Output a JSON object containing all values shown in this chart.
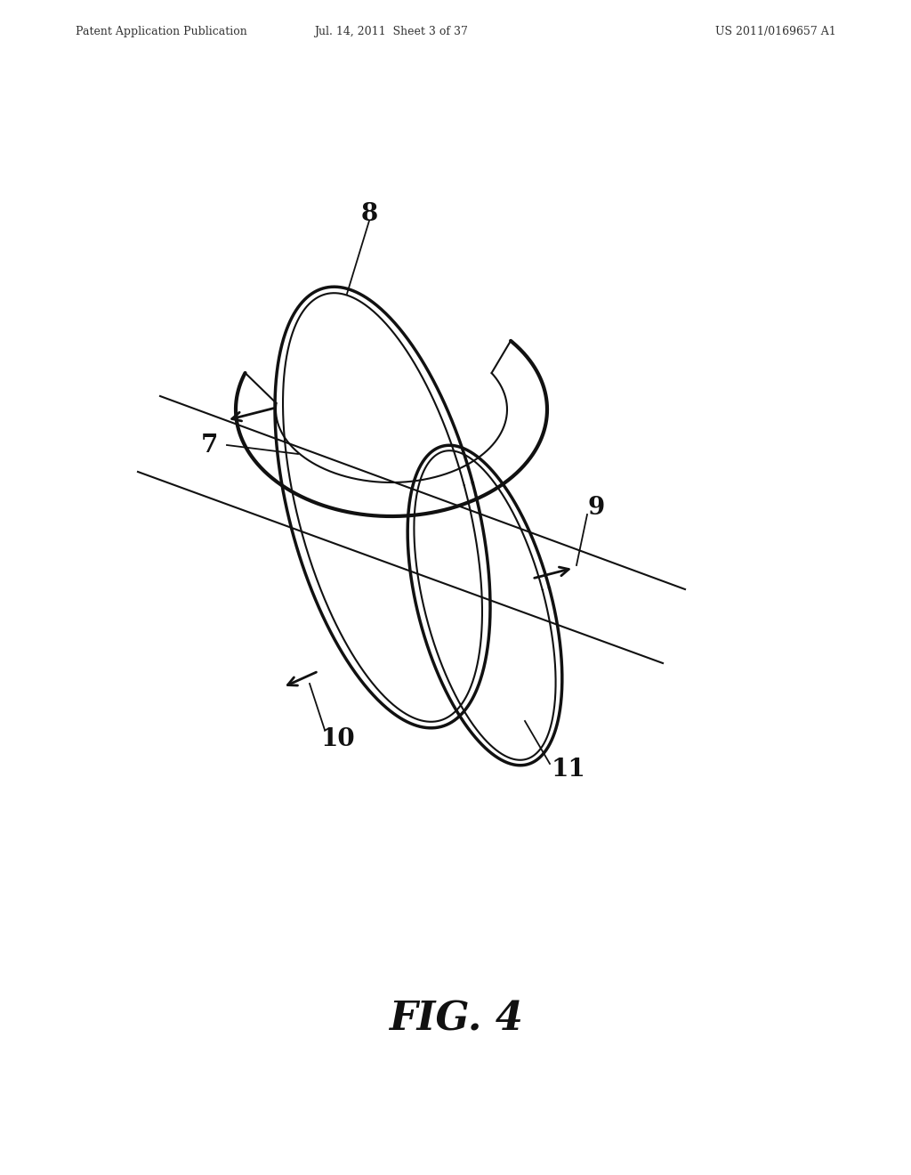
{
  "header_left": "Patent Application Publication",
  "header_mid": "Jul. 14, 2011  Sheet 3 of 37",
  "header_right": "US 2011/0169657 A1",
  "fig_label": "FIG. 4",
  "background_color": "#ffffff",
  "line_color": "#111111",
  "lw_thick": 2.5,
  "lw_thin": 1.5,
  "lw_leader": 1.3,
  "header_fontsize": 9,
  "fig_fontsize": 32,
  "label_fontsize": 18
}
